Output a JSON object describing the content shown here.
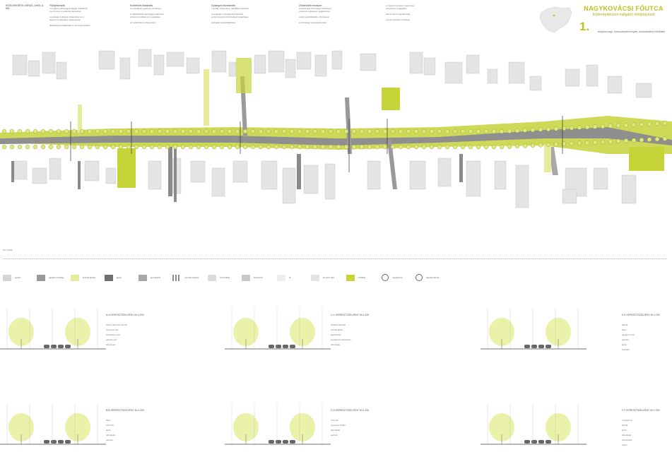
{
  "title": {
    "main": "NAGYKOVÁCSI FŐUTCA",
    "subtitle": "közterépítészeti hallgatói ötletpályázat",
    "number": "1.",
    "caption": "helyszínrajz, keresztszelvények, közlekedési felületek"
  },
  "colors": {
    "accent": "#b9c41c",
    "road": "#9a9a9a",
    "building": "#d4d4d4",
    "green": "#c6d43a",
    "lightgreen": "#e6ec9c"
  },
  "text_columns": [
    {
      "head": "KÖZLEKEDÉSI LEÍRÁS, AHOL A MA",
      "lines": []
    },
    {
      "head": "Főútjellemzők",
      "lines": [
        "a meglévő adottságok alapján kialakított",
        "nyomvonal, a parkolók rendezése",
        "",
        "a gyalogos felületek szélesítése és a",
        "fasorok megtartása, kiegészítése",
        "",
        "átkelőhelyek kialakítása a csomópontokban"
      ]
    },
    {
      "head": "Közterület-kialakítás",
      "lines": [
        "a burkolatok egységes rendszere",
        "",
        "a zöldfelületek összefüggő hálózata",
        "a fasorok pótlása és megújítása",
        "",
        "az utcabútorok elhelyezése"
      ]
    },
    {
      "head": "Gyalogos közlekedés",
      "lines": [
        "a járdák szélesítése, akadálymentesítés",
        "",
        "a kerékpáros közlekedés feltételei",
        "a csomópontok biztonságos kialakítása",
        "",
        "parkolási rend kialakítása"
      ]
    },
    {
      "head": "Zöldfelületi rendszer",
      "lines": [
        "a közterületi zöld sávok rendezése",
        "a fasorok egységes megjelenése",
        "",
        "esővíz-gazdálkodás, zöld sávok",
        "",
        "a közösségi terek kapcsolata"
      ]
    },
    {
      "head": "",
      "lines": [
        "a meglévő értékek megőrzése",
        "a közterek megújítása",
        "",
        "ütemezhető megvalósítás",
        "",
        "a helyi identitás erősítése"
      ]
    }
  ],
  "legend": {
    "scale_label": "M=1:1000",
    "items": [
      {
        "label": "épület",
        "color": "#d4d4d4",
        "kind": "fill"
      },
      {
        "label": "gépjármű felület",
        "color": "#9a9a9a",
        "kind": "fill"
      },
      {
        "label": "burkolt felület",
        "color": "#e6ec9c",
        "kind": "fill"
      },
      {
        "label": "járda",
        "color": "#6f6f6f",
        "kind": "fill"
      },
      {
        "label": "kerékpárút",
        "color": "#a8a8a8",
        "kind": "fill"
      },
      {
        "label": "murvás parkoló",
        "color": "#8c8c8c",
        "kind": "hatch"
      },
      {
        "label": "zöld felület",
        "color": "#dcdcdc",
        "kind": "fill"
      },
      {
        "label": "kertészeti",
        "color": "#c9c9c9",
        "kind": "fill"
      },
      {
        "label": "fa",
        "color": "#eeeeee",
        "kind": "fill"
      },
      {
        "label": "kiemelt zöld",
        "color": "#e3e3e3",
        "kind": "fill"
      },
      {
        "label": "zöldsáv",
        "color": "#c6d43a",
        "kind": "fill"
      },
      {
        "label": "meglévő fa",
        "color": "#ffffff",
        "kind": "circle"
      },
      {
        "label": "telepítendő fa",
        "color": "#ffffff",
        "kind": "circle"
      }
    ]
  },
  "sections": [
    {
      "title": "A-A KERESZTSZELVÉNY   M=1:200",
      "notes": [
        "fasor a kocsiút mentén",
        "gyalogos sáv",
        "kerékpáros sáv",
        "parkoló sáv",
        "útburkolat"
      ]
    },
    {
      "title": "C-C KERESZTSZELVÉNY   M=1:200",
      "notes": [
        "zöldsáv fasorral",
        "burkolt járda",
        "parkolósáv",
        "kerékpáros átvezetés",
        "útburkolat"
      ]
    },
    {
      "title": "E-E KERESZTSZELVÉNY   M=1:200",
      "notes": [
        "támfal",
        "fasor",
        "gépjármű sáv",
        "parkoló",
        "járda",
        "burkolat"
      ]
    },
    {
      "title": "B-B KERESZTSZELVÉNY   M=1:200",
      "notes": [
        "fasor",
        "zöld sáv",
        "járda",
        "útburkolat",
        "parkoló"
      ]
    },
    {
      "title": "D-D KERESZTSZELVÉNY   M=1:200",
      "notes": [
        "zöld sáv",
        "gyalogos felület",
        "útburkolat",
        "parkoló"
      ]
    },
    {
      "title": "F-F KERESZTSZELVÉNY   M=1:200",
      "notes": [
        "meglévő fa",
        "támfal",
        "járda",
        "útburkolat",
        "zöld felület",
        "rézsű"
      ]
    }
  ]
}
